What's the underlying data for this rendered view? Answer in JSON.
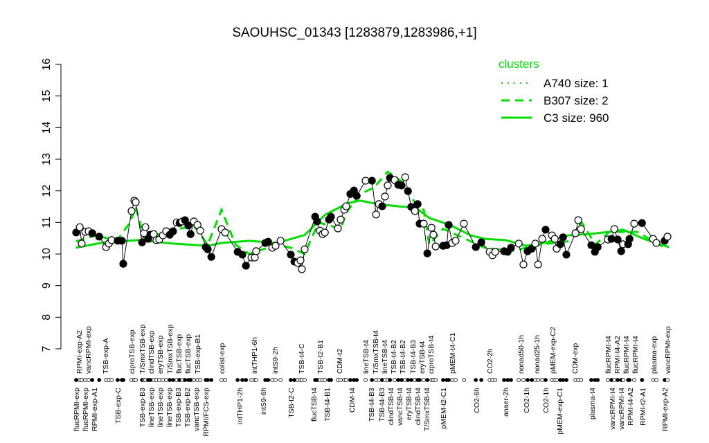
{
  "chart_data": {
    "type": "line",
    "title": "SAOUHSC_01343 [1283879,1283986,+1]",
    "xlabel": "",
    "ylabel": "",
    "ylim": [
      7,
      16
    ],
    "xlim": [
      0,
      217
    ],
    "yticks": [
      7,
      8,
      9,
      10,
      11,
      12,
      13,
      14,
      15,
      16
    ],
    "grid": false,
    "legend": {
      "title": "clusters",
      "position": "top-right",
      "entries": [
        {
          "name": "A740 size: 1",
          "style": "dotted",
          "color": "#00dd00"
        },
        {
          "name": "B307 size: 2",
          "style": "dashed",
          "color": "#00dd00"
        },
        {
          "name": "C3 size: 960",
          "style": "solid",
          "color": "#00dd00"
        }
      ]
    },
    "points": [
      [
        2.5,
        10.68,
        1
      ],
      [
        3.8,
        10.85,
        0
      ],
      [
        4.5,
        10.33,
        0
      ],
      [
        5.8,
        10.7,
        0
      ],
      [
        7,
        10.72,
        0
      ],
      [
        8.3,
        10.66,
        1
      ],
      [
        10.8,
        10.55,
        1
      ],
      [
        13.3,
        10.22,
        0
      ],
      [
        14.3,
        10.33,
        0
      ],
      [
        15.3,
        10.44,
        0
      ],
      [
        17.5,
        10.42,
        1
      ],
      [
        19,
        10.42,
        1
      ],
      [
        19.5,
        9.69,
        1
      ],
      [
        22.5,
        11.36,
        0
      ],
      [
        23.5,
        11.69,
        0
      ],
      [
        24,
        11.64,
        0
      ],
      [
        26.3,
        10.37,
        1
      ],
      [
        27,
        10.66,
        0
      ],
      [
        27.5,
        10.85,
        0
      ],
      [
        28.5,
        10.48,
        1
      ],
      [
        29.3,
        10.61,
        1
      ],
      [
        30.5,
        10.63,
        0
      ],
      [
        31.5,
        10.44,
        0
      ],
      [
        32.5,
        10.46,
        0
      ],
      [
        33.8,
        10.59,
        0
      ],
      [
        35,
        10.72,
        0
      ],
      [
        36.3,
        10.61,
        1
      ],
      [
        37.5,
        10.72,
        1
      ],
      [
        38.8,
        11.0,
        0
      ],
      [
        39.8,
        10.98,
        1
      ],
      [
        40.8,
        11.03,
        0
      ],
      [
        41.8,
        11.07,
        1
      ],
      [
        43,
        10.9,
        1
      ],
      [
        43.8,
        10.63,
        1
      ],
      [
        45,
        11.03,
        0
      ],
      [
        46.3,
        10.92,
        0
      ],
      [
        47.3,
        10.74,
        0
      ],
      [
        49.3,
        10.22,
        1
      ],
      [
        50,
        10.15,
        1
      ],
      [
        51.3,
        9.91,
        1
      ],
      [
        55,
        10.79,
        0
      ],
      [
        56.3,
        10.68,
        0
      ],
      [
        60.8,
        10.07,
        1
      ],
      [
        62.5,
        9.98,
        1
      ],
      [
        63.8,
        9.63,
        1
      ],
      [
        65.8,
        9.89,
        0
      ],
      [
        67,
        9.89,
        0
      ],
      [
        67.5,
        10.09,
        0
      ],
      [
        70.8,
        10.35,
        1
      ],
      [
        71.8,
        10.39,
        1
      ],
      [
        73.3,
        10.2,
        0
      ],
      [
        74.5,
        10.26,
        0
      ],
      [
        76.3,
        10.42,
        0
      ],
      [
        80,
        9.98,
        1
      ],
      [
        81.3,
        9.76,
        1
      ],
      [
        82.5,
        9.72,
        0
      ],
      [
        83.5,
        9.8,
        0
      ],
      [
        84,
        9.52,
        0
      ],
      [
        85,
        10.15,
        0
      ],
      [
        88.8,
        11.18,
        1
      ],
      [
        89.5,
        11.03,
        1
      ],
      [
        90.5,
        10.74,
        0
      ],
      [
        91.5,
        10.63,
        0
      ],
      [
        92.3,
        10.68,
        0
      ],
      [
        93.8,
        11.09,
        1
      ],
      [
        94.5,
        11.18,
        1
      ],
      [
        97,
        10.81,
        0
      ],
      [
        98,
        11.09,
        0
      ],
      [
        99.3,
        11.4,
        0
      ],
      [
        100,
        11.51,
        0
      ],
      [
        101.5,
        11.9,
        1
      ],
      [
        102.8,
        12.01,
        1
      ],
      [
        103.8,
        11.84,
        1
      ],
      [
        107,
        12.32,
        0
      ],
      [
        109.3,
        12.32,
        1
      ],
      [
        110.8,
        11.25,
        0
      ],
      [
        111.8,
        11.58,
        0
      ],
      [
        113,
        11.51,
        1
      ],
      [
        114,
        11.82,
        0
      ],
      [
        115,
        12.17,
        0
      ],
      [
        115.8,
        12.41,
        1
      ],
      [
        117.5,
        12.34,
        0
      ],
      [
        118.8,
        12.19,
        1
      ],
      [
        120,
        12.17,
        1
      ],
      [
        121.3,
        12.43,
        0
      ],
      [
        122.3,
        11.99,
        1
      ],
      [
        123.5,
        11.49,
        1
      ],
      [
        124.8,
        11.36,
        0
      ],
      [
        125.8,
        11.58,
        1
      ],
      [
        126.5,
        10.96,
        1
      ],
      [
        128,
        10.96,
        0
      ],
      [
        129.3,
        10.02,
        1
      ],
      [
        130.8,
        10.83,
        0
      ],
      [
        131.5,
        10.61,
        0
      ],
      [
        132.3,
        10.24,
        0
      ],
      [
        135,
        10.26,
        1
      ],
      [
        136.3,
        10.28,
        1
      ],
      [
        137,
        10.92,
        1
      ],
      [
        138.3,
        10.35,
        0
      ],
      [
        139.5,
        10.42,
        0
      ],
      [
        142.5,
        10.96,
        0
      ],
      [
        146.8,
        10.22,
        1
      ],
      [
        148.8,
        10.37,
        1
      ],
      [
        151.8,
        10.07,
        0
      ],
      [
        152.8,
        9.96,
        0
      ],
      [
        153.8,
        10.07,
        0
      ],
      [
        157,
        10.09,
        1
      ],
      [
        158.3,
        10.07,
        1
      ],
      [
        159.5,
        10.2,
        1
      ],
      [
        162.3,
        10.33,
        0
      ],
      [
        164,
        9.67,
        0
      ],
      [
        165.5,
        10.09,
        1
      ],
      [
        167,
        10.17,
        1
      ],
      [
        168.3,
        10.33,
        0
      ],
      [
        169.3,
        9.67,
        0
      ],
      [
        170.8,
        10.48,
        0
      ],
      [
        172,
        10.77,
        1
      ],
      [
        174.3,
        10.59,
        0
      ],
      [
        175.3,
        10.48,
        0
      ],
      [
        176,
        10.17,
        0
      ],
      [
        177.3,
        10.31,
        1
      ],
      [
        178.3,
        10.53,
        1
      ],
      [
        179.5,
        9.98,
        1
      ],
      [
        182.8,
        10.66,
        0
      ],
      [
        183.8,
        11.07,
        0
      ],
      [
        184.8,
        10.79,
        0
      ],
      [
        188.5,
        10.28,
        1
      ],
      [
        189.8,
        10.07,
        1
      ],
      [
        190.8,
        10.22,
        1
      ],
      [
        194.5,
        10.46,
        0
      ],
      [
        195.8,
        10.48,
        1
      ],
      [
        196.8,
        10.79,
        0
      ],
      [
        198,
        10.46,
        1
      ],
      [
        199.3,
        10.09,
        1
      ],
      [
        200,
        10.31,
        0
      ],
      [
        201.8,
        10.31,
        1
      ],
      [
        202.3,
        10.48,
        1
      ],
      [
        204,
        10.96,
        0
      ],
      [
        206.8,
        10.98,
        1
      ],
      [
        210.8,
        10.48,
        0
      ],
      [
        212,
        10.35,
        0
      ],
      [
        215,
        10.42,
        1
      ],
      [
        216,
        10.55,
        0
      ]
    ],
    "series": [
      {
        "name": "C3 size: 960",
        "style": "solid",
        "color": "#00dd00",
        "x": [
          2.5,
          12.5,
          25,
          37.5,
          50,
          55,
          65,
          75,
          85,
          92.5,
          97.5,
          100,
          105,
          111.3,
          120,
          125,
          130,
          137.5,
          145,
          150,
          157.5,
          165,
          172.5,
          180,
          187.5,
          195,
          200,
          207.5,
          216.5
        ],
        "y": [
          10.2,
          10.37,
          10.44,
          10.33,
          10.26,
          10.35,
          10.42,
          10.35,
          10.6,
          11.25,
          11.47,
          11.6,
          11.69,
          11.58,
          11.5,
          11.47,
          11.14,
          10.92,
          10.59,
          10.48,
          10.44,
          10.26,
          10.37,
          10.59,
          10.63,
          10.7,
          10.77,
          10.48,
          10.22
        ]
      },
      {
        "name": "B307 size: 2",
        "style": "dashed",
        "color": "#00dd00",
        "x": [
          2.5,
          10,
          17,
          22,
          24,
          27,
          40,
          45,
          50,
          55,
          60,
          65,
          75,
          80,
          85,
          90,
          98,
          100,
          105,
          110,
          115,
          120,
          125,
          128,
          130,
          135,
          140,
          150,
          160,
          170,
          180,
          185,
          190,
          195,
          205,
          215
        ],
        "y": [
          10.4,
          10.6,
          10.4,
          11.0,
          11.5,
          10.5,
          10.8,
          10.9,
          10.3,
          11.4,
          10.3,
          10.0,
          10.3,
          10.2,
          10.0,
          11.0,
          10.8,
          11.3,
          11.9,
          12.1,
          12.6,
          12.3,
          11.6,
          11.4,
          10.3,
          10.8,
          10.6,
          10.2,
          10.1,
          10.3,
          10.4,
          11.0,
          10.3,
          10.7,
          10.7,
          10.2
        ]
      }
    ],
    "top_labels": [
      [
        3.5,
        "RPMI-exp-A2"
      ],
      [
        5,
        "vancRPMI-exp"
      ],
      [
        13,
        "TSB-exp-A"
      ],
      [
        22.5,
        "ciproTSB-exp"
      ],
      [
        26.3,
        "T/SmxTSB-exp"
      ],
      [
        28.8,
        "clindTSB-exp"
      ],
      [
        32.8,
        "eryTSB-exp"
      ],
      [
        36.3,
        "T/SmxTSB-exp"
      ],
      [
        38.3,
        "flucTSB-exp"
      ],
      [
        42,
        "flucTSB-exp"
      ],
      [
        46.3,
        "TSB-exp-B1"
      ],
      [
        55,
        "colist-exp"
      ],
      [
        66.8,
        "intTHP1-6h"
      ],
      [
        74.3,
        "intS9-2h"
      ],
      [
        83.8,
        "TSB-t4-C"
      ],
      [
        90.5,
        "TSB-t2-B1"
      ],
      [
        97.5,
        "CDM-t2"
      ],
      [
        107,
        "lineTSB-t4"
      ],
      [
        110.5,
        "T/SmxTSB-t4"
      ],
      [
        113.8,
        "lineTSB-t4"
      ],
      [
        117,
        "TSB-t4-B2"
      ],
      [
        120.3,
        "TSB-t4-B2"
      ],
      [
        124,
        "TSB-t4-B3"
      ],
      [
        127.3,
        "eryTSB-t4"
      ],
      [
        130.5,
        "ciproTSB-t4"
      ],
      [
        138.3,
        "pMEM-t4-C1"
      ],
      [
        151.8,
        "CO2-2h"
      ],
      [
        163,
        "nonad50-1h"
      ],
      [
        168.8,
        "nonad25-1h"
      ],
      [
        174.5,
        "pMEM-exp-C2"
      ],
      [
        182.5,
        "CDM-exp"
      ],
      [
        194.5,
        "flucRPMI-t4"
      ],
      [
        196,
        "RPMI-t4-A2"
      ],
      [
        200.5,
        "flucRPMI-t4"
      ],
      [
        204,
        "flucRPMI-t4"
      ],
      [
        211,
        "plasma-exp"
      ],
      [
        216,
        "vancRPMI-exp"
      ]
    ],
    "bottom_labels": [
      [
        2.5,
        "flucRPMI-exp"
      ],
      [
        5,
        "flucRPMI-exp"
      ],
      [
        7.5,
        "RPMI-exp-A1"
      ],
      [
        17.5,
        "TSB-exp-C"
      ],
      [
        26.3,
        "TSB-exp-B3"
      ],
      [
        28.8,
        "lineTSB-exp"
      ],
      [
        31.8,
        "lineTSB-exp"
      ],
      [
        34.8,
        "lineTSB-exp"
      ],
      [
        36.3,
        "TSB-exp-B3"
      ],
      [
        39.8,
        "TSB-exp-B2"
      ],
      [
        42.8,
        "vancTSB-exp"
      ],
      [
        49.3,
        "RPMI/FCS-exp"
      ],
      [
        61.5,
        "intTHP1-2h"
      ],
      [
        70,
        "intS9-6h"
      ],
      [
        80,
        "TSB-t2-C"
      ],
      [
        88.3,
        "flucTSB-t4"
      ],
      [
        93,
        "TSB-t4-B1"
      ],
      [
        102,
        "CDM-t4"
      ],
      [
        109,
        "TSB-t4-B3"
      ],
      [
        112.8,
        "TSB-t4-B3"
      ],
      [
        115.8,
        "clindTSB-t4"
      ],
      [
        119,
        "vancTSB-t4"
      ],
      [
        122.3,
        "eryTSB-t4"
      ],
      [
        125.5,
        "clindTSB-t4"
      ],
      [
        128.8,
        "T/SmxTSB-t4"
      ],
      [
        135,
        "pMEM-t2-C1"
      ],
      [
        147,
        "CO2-6h"
      ],
      [
        157.5,
        "anaer-2h"
      ],
      [
        165,
        "CO2-1h"
      ],
      [
        172,
        "CO2-1h"
      ],
      [
        177,
        "pMEM-exp-C1"
      ],
      [
        188.8,
        "plasma-t4"
      ],
      [
        196,
        "vancRPMI-t4"
      ],
      [
        198,
        "vancRPMI-t4"
      ],
      [
        201.3,
        "RPMI-t4-A2"
      ],
      [
        207,
        "RPMI-t2-A1"
      ],
      [
        215,
        "RPMI-exp-A2"
      ]
    ]
  }
}
